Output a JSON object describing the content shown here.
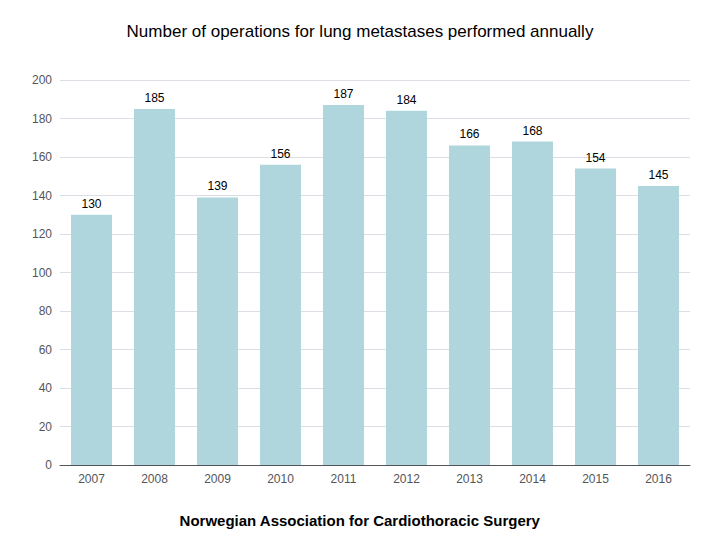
{
  "chart_data": {
    "type": "bar",
    "title": "Number of operations for lung metastases performed annually",
    "annotations": [
      "Norwegian Association for Cardiothoracic Surgery"
    ],
    "categories": [
      "2007",
      "2008",
      "2009",
      "2010",
      "2011",
      "2012",
      "2013",
      "2014",
      "2015",
      "2016"
    ],
    "values": [
      130,
      185,
      139,
      156,
      187,
      184,
      166,
      168,
      154,
      145
    ],
    "color": "#aed6dc",
    "ylim": [
      0,
      200
    ],
    "yticks": [
      0,
      20,
      40,
      60,
      80,
      100,
      120,
      140,
      160,
      180,
      200
    ],
    "grid": true,
    "data_labels": true
  }
}
